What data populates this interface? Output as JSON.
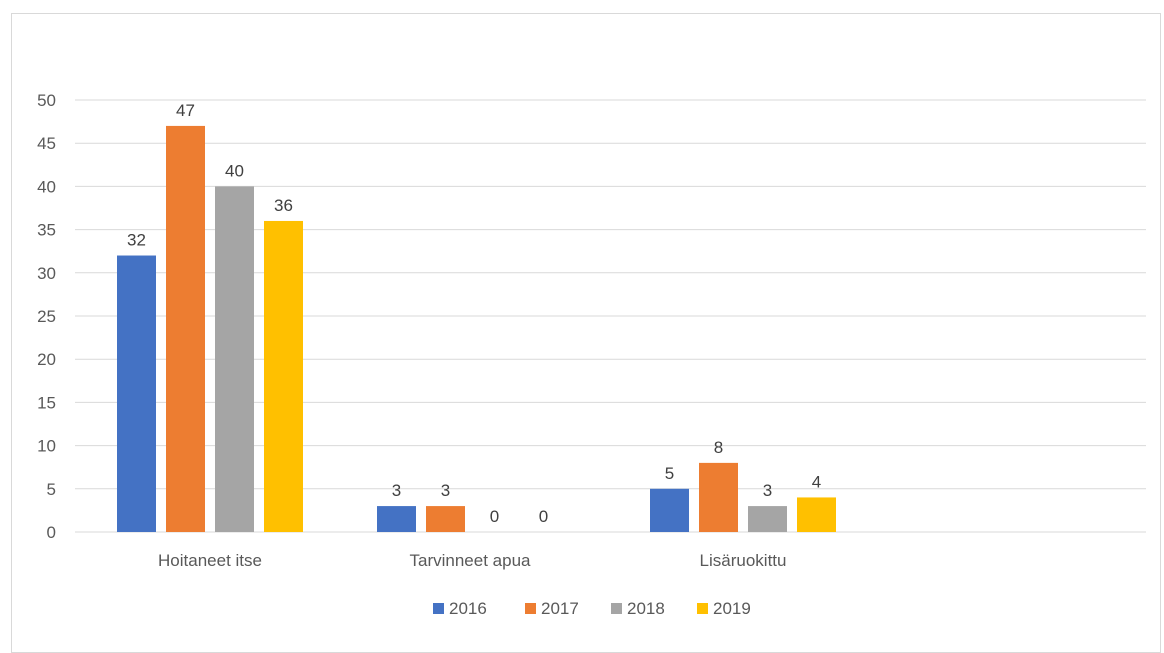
{
  "chart_data": {
    "type": "bar",
    "categories": [
      "Hoitaneet itse",
      "Tarvinneet apua",
      "Lisäruokittu"
    ],
    "series": [
      {
        "name": "2016",
        "color": "#4472c4",
        "values": [
          32,
          3,
          5
        ]
      },
      {
        "name": "2017",
        "color": "#ed7d31",
        "values": [
          47,
          3,
          8
        ]
      },
      {
        "name": "2018",
        "color": "#a5a5a5",
        "values": [
          40,
          0,
          3
        ]
      },
      {
        "name": "2019",
        "color": "#ffc000",
        "values": [
          36,
          0,
          4
        ]
      }
    ],
    "yticks": [
      "0",
      "5",
      "10",
      "15",
      "20",
      "25",
      "30",
      "35",
      "40",
      "45",
      "50"
    ],
    "ylim": [
      0,
      50
    ],
    "grid": true,
    "legend_position": "bottom",
    "gridline_color": "#d9d9d9"
  }
}
